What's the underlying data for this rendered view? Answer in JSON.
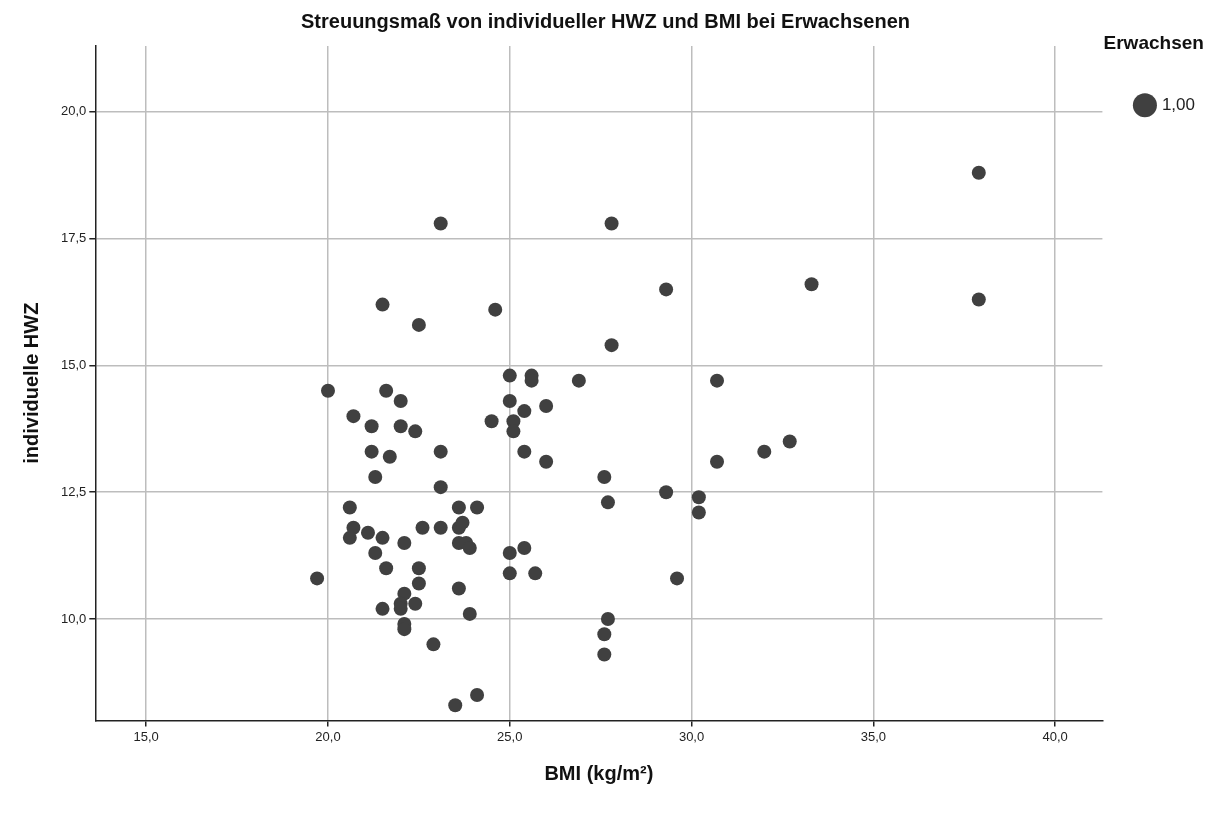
{
  "chart_data": {
    "type": "scatter",
    "title": "Streuungsmaß von individueller HWZ und BMI bei Erwachsenen",
    "xlabel": "BMI (kg/m²)",
    "ylabel": "individuelle HWZ",
    "legend_title": "Erwachsen",
    "legend": "top right",
    "grid": true,
    "marker": "circle",
    "xlim": [
      13.6,
      41.3
    ],
    "ylim": [
      8.0,
      21.3
    ],
    "xticks": [
      {
        "value": 15,
        "label": "15,0"
      },
      {
        "value": 20,
        "label": "20,0"
      },
      {
        "value": 25,
        "label": "25,0"
      },
      {
        "value": 30,
        "label": "30,0"
      },
      {
        "value": 35,
        "label": "35,0"
      },
      {
        "value": 40,
        "label": "40,0"
      }
    ],
    "yticks": [
      {
        "value": 10,
        "label": "10,0"
      },
      {
        "value": 12.5,
        "label": "12,5"
      },
      {
        "value": 15,
        "label": "15,0"
      },
      {
        "value": 17.5,
        "label": "17,5"
      },
      {
        "value": 20,
        "label": "20,0"
      }
    ],
    "series": [
      {
        "name": "1,00",
        "color": "#404040",
        "x": [
          37.9,
          23.1,
          27.8,
          21.5,
          22.5,
          24.6,
          29.3,
          33.3,
          37.9,
          27.8,
          25.0,
          25.6,
          25.6,
          26.9,
          30.7,
          20.0,
          21.6,
          22.0,
          25.0,
          26.0,
          25.4,
          20.7,
          24.5,
          25.1,
          25.1,
          21.2,
          22.0,
          22.4,
          32.7,
          32.0,
          30.7,
          21.2,
          21.7,
          23.1,
          25.4,
          26.0,
          27.6,
          21.3,
          23.1,
          29.3,
          30.2,
          27.7,
          30.2,
          20.6,
          23.6,
          24.1,
          20.7,
          21.1,
          20.6,
          21.5,
          22.1,
          22.6,
          23.1,
          23.6,
          23.7,
          23.6,
          23.8,
          23.9,
          21.3,
          25.0,
          25.4,
          21.6,
          22.5,
          25.0,
          25.7,
          19.7,
          29.6,
          22.5,
          23.6,
          22.1,
          22.4,
          22.0,
          22.0,
          21.5,
          23.9,
          27.7,
          22.1,
          22.1,
          27.6,
          22.9,
          27.6,
          24.1,
          23.5
        ],
        "values": [
          18.8,
          17.8,
          17.8,
          16.2,
          15.8,
          16.1,
          16.5,
          16.6,
          16.3,
          15.4,
          14.8,
          14.8,
          14.7,
          14.7,
          14.7,
          14.5,
          14.5,
          14.3,
          14.3,
          14.2,
          14.1,
          14.0,
          13.9,
          13.9,
          13.7,
          13.8,
          13.8,
          13.7,
          13.5,
          13.3,
          13.1,
          13.3,
          13.2,
          13.3,
          13.3,
          13.1,
          12.8,
          12.8,
          12.6,
          12.5,
          12.4,
          12.3,
          12.1,
          12.2,
          12.2,
          12.2,
          11.8,
          11.7,
          11.6,
          11.6,
          11.5,
          11.8,
          11.8,
          11.8,
          11.9,
          11.5,
          11.5,
          11.4,
          11.3,
          11.3,
          11.4,
          11.0,
          11.0,
          10.9,
          10.9,
          10.8,
          10.8,
          10.7,
          10.6,
          10.5,
          10.3,
          10.3,
          10.2,
          10.2,
          10.1,
          10.0,
          9.9,
          9.8,
          9.7,
          9.5,
          9.3,
          8.5,
          8.3
        ]
      }
    ]
  }
}
